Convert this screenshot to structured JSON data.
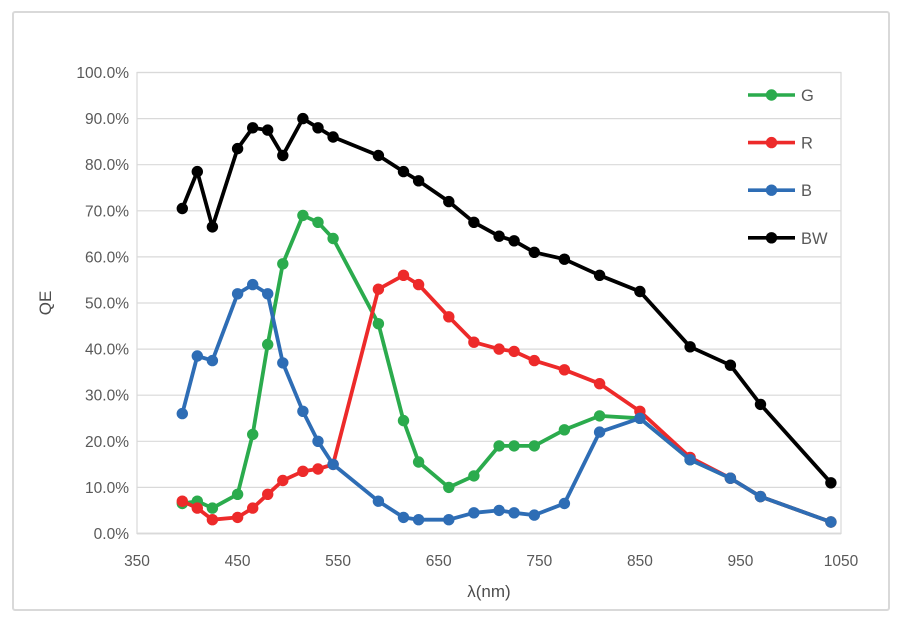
{
  "chart_data": {
    "type": "line",
    "title": "",
    "xlabel": "λ(nm)",
    "ylabel": "QE",
    "xlim": [
      350,
      1050
    ],
    "ylim": [
      0,
      100
    ],
    "grid": "horizontal",
    "x_tick_values": [
      350,
      450,
      550,
      650,
      750,
      850,
      950,
      1050
    ],
    "x_tick_labels": [
      "350",
      "450",
      "550",
      "650",
      "750",
      "850",
      "950",
      "1050"
    ],
    "y_tick_values": [
      0,
      10,
      20,
      30,
      40,
      50,
      60,
      70,
      80,
      90,
      100
    ],
    "y_tick_labels": [
      "0.0%",
      "10.0%",
      "20.0%",
      "30.0%",
      "40.0%",
      "50.0%",
      "60.0%",
      "70.0%",
      "80.0%",
      "90.0%",
      "100.0%"
    ],
    "legend": {
      "position": "top-right",
      "entries": [
        "G",
        "R",
        "B",
        "BW"
      ]
    },
    "x": [
      395,
      410,
      425,
      450,
      465,
      480,
      495,
      515,
      530,
      545,
      590,
      615,
      630,
      660,
      685,
      710,
      725,
      745,
      775,
      810,
      850,
      900,
      940,
      970,
      1040
    ],
    "series": [
      {
        "name": "G",
        "color": "#2BAB4D",
        "marker": "circle",
        "values": [
          6.5,
          7,
          5.5,
          8.5,
          21.5,
          41,
          58.5,
          69,
          67.5,
          64,
          45.5,
          24.5,
          15.5,
          10,
          12.5,
          19,
          19,
          19,
          22.5,
          25.5,
          25,
          16,
          12,
          8,
          2.5
        ]
      },
      {
        "name": "R",
        "color": "#ED2A2A",
        "marker": "circle",
        "values": [
          7,
          5.5,
          3,
          3.5,
          5.5,
          8.5,
          11.5,
          13.5,
          14,
          15,
          53,
          56,
          54,
          47,
          41.5,
          40,
          39.5,
          37.5,
          35.5,
          32.5,
          26.5,
          16.5,
          12,
          8,
          2.5
        ]
      },
      {
        "name": "B",
        "color": "#2E6DB5",
        "marker": "circle",
        "values": [
          26,
          38.5,
          37.5,
          52,
          54,
          52,
          37,
          26.5,
          20,
          15,
          7,
          3.5,
          3,
          3,
          4.5,
          5,
          4.5,
          4,
          6.5,
          22,
          25,
          16,
          12,
          8,
          2.5
        ]
      },
      {
        "name": "BW",
        "color": "#000000",
        "marker": "circle",
        "values": [
          70.5,
          78.5,
          66.5,
          83.5,
          88,
          87.5,
          82,
          90,
          88,
          86,
          82,
          78.5,
          76.5,
          72,
          67.5,
          64.5,
          63.5,
          61,
          59.5,
          56,
          52.5,
          40.5,
          36.5,
          28,
          11
        ]
      }
    ],
    "style": {
      "background": "#FFFFFF",
      "frame_border_color": "#D9D9D9",
      "grid_color": "#D9D9D9",
      "axis_line_color": "#BFBFBF",
      "tick_label_color": "#595959",
      "axis_title_color": "#4D4D4D",
      "legend_label_color": "#595959"
    }
  }
}
